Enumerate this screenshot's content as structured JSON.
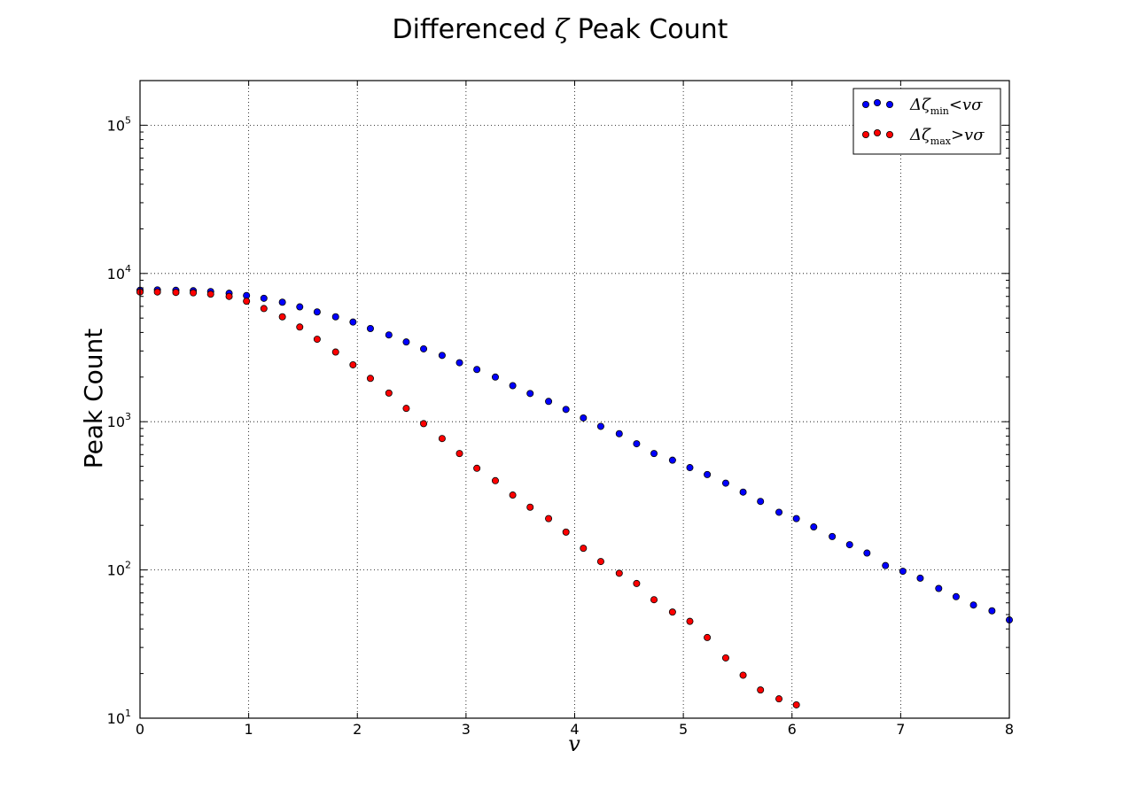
{
  "chart_data": {
    "type": "scatter",
    "title": {
      "prefix": "Differenced ",
      "symbol": "ζ",
      "suffix": " Peak Count"
    },
    "xlabel": "v",
    "ylabel": "Peak Count",
    "xlim": [
      0,
      8
    ],
    "ylim": [
      10,
      200000
    ],
    "yscale": "log",
    "x_ticks": [
      "0",
      "1",
      "2",
      "3",
      "4",
      "5",
      "6",
      "7",
      "8"
    ],
    "y_ticks": [
      {
        "base": "10",
        "exp": "1"
      },
      {
        "base": "10",
        "exp": "2"
      },
      {
        "base": "10",
        "exp": "3"
      },
      {
        "base": "10",
        "exp": "4"
      },
      {
        "base": "10",
        "exp": "5"
      }
    ],
    "grid": true,
    "legend_position": "top-right",
    "series": [
      {
        "legend": {
          "delta": "Δζ",
          "sub": "min",
          "rel": "<vσ"
        },
        "color": "#0000ff",
        "x": [
          0.0,
          0.16,
          0.33,
          0.49,
          0.65,
          0.82,
          0.98,
          1.14,
          1.31,
          1.47,
          1.63,
          1.8,
          1.96,
          2.12,
          2.29,
          2.45,
          2.61,
          2.78,
          2.94,
          3.1,
          3.27,
          3.43,
          3.59,
          3.76,
          3.92,
          4.08,
          4.24,
          4.41,
          4.57,
          4.73,
          4.9,
          5.06,
          5.22,
          5.39,
          5.55,
          5.71,
          5.88,
          6.04,
          6.2,
          6.37,
          6.53,
          6.69,
          6.86,
          7.02,
          7.18,
          7.35,
          7.51,
          7.67,
          7.84,
          8.0
        ],
        "y": [
          7700,
          7750,
          7700,
          7650,
          7550,
          7350,
          7100,
          6800,
          6400,
          5950,
          5500,
          5100,
          4700,
          4250,
          3850,
          3450,
          3100,
          2800,
          2500,
          2250,
          2000,
          1750,
          1550,
          1370,
          1210,
          1060,
          930,
          830,
          710,
          610,
          550,
          490,
          440,
          385,
          335,
          290,
          245,
          222,
          195,
          168,
          148,
          130,
          107,
          98,
          88,
          75,
          66,
          58,
          53,
          46
        ]
      },
      {
        "legend": {
          "delta": "Δζ",
          "sub": "max",
          "rel": ">vσ"
        },
        "color": "#ff0000",
        "x": [
          0.0,
          0.16,
          0.33,
          0.49,
          0.65,
          0.82,
          0.98,
          1.14,
          1.31,
          1.47,
          1.63,
          1.8,
          1.96,
          2.12,
          2.29,
          2.45,
          2.61,
          2.78,
          2.94,
          3.1,
          3.27,
          3.43,
          3.59,
          3.76,
          3.92,
          4.08,
          4.24,
          4.41,
          4.57,
          4.73,
          4.9,
          5.06,
          5.22,
          5.39,
          5.55,
          5.71,
          5.88,
          6.04
        ],
        "y": [
          7500,
          7500,
          7450,
          7400,
          7250,
          7000,
          6500,
          5800,
          5100,
          4350,
          3600,
          2950,
          2420,
          1960,
          1560,
          1230,
          970,
          770,
          610,
          485,
          400,
          320,
          265,
          222,
          180,
          140,
          114,
          95,
          81,
          63,
          52,
          45,
          35,
          25.5,
          19.5,
          15.5,
          13.5,
          12.3
        ]
      }
    ]
  }
}
